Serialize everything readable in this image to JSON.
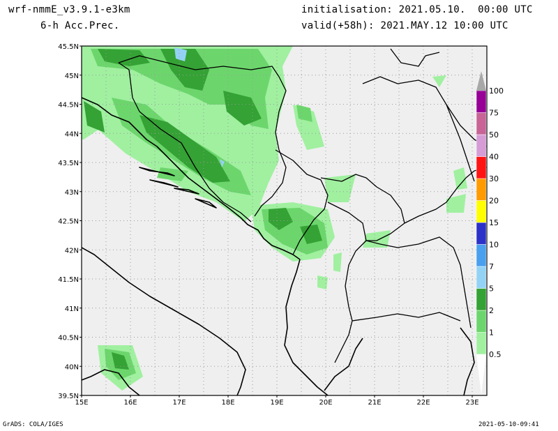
{
  "header": {
    "model": "wrf-nmmE_v3.9.1-e3km",
    "field": "6-h Acc.Prec.",
    "init": "initialisation: 2021.05.10.  00:00 UTC",
    "valid": "valid(+58h): 2021.MAY.12 10:00 UTC"
  },
  "footer": {
    "credit": "GrADS: COLA/IGES",
    "timestamp": "2021-05-10-09:41"
  },
  "map": {
    "lat_labels": [
      "45.5N",
      "45N",
      "44.5N",
      "44N",
      "43.5N",
      "43N",
      "42.5N",
      "42N",
      "41.5N",
      "41N",
      "40.5N",
      "40N",
      "39.5N"
    ],
    "lon_labels": [
      "15E",
      "16E",
      "17E",
      "18E",
      "19E",
      "20E",
      "21E",
      "22E",
      "23E"
    ],
    "lat_range": [
      39.5,
      45.5
    ],
    "lon_range": [
      15,
      23.3
    ],
    "grid": true
  },
  "legend": {
    "levels": [
      "0.5",
      "1",
      "2",
      "5",
      "7",
      "10",
      "15",
      "20",
      "30",
      "40",
      "50",
      "75",
      "100"
    ],
    "colors": [
      "#a0f0a0",
      "#6cd66c",
      "#34a234",
      "#94d2f5",
      "#4a9fee",
      "#2c32c8",
      "#ffff00",
      "#ff9a00",
      "#ff1414",
      "#d69cd6",
      "#c86496",
      "#960096",
      "#a8a8a8"
    ]
  },
  "precip_colors": {
    "light": "#a0f0a0",
    "medium": "#6cd66c",
    "heavy": "#34a234",
    "water": "#94d2f5"
  }
}
